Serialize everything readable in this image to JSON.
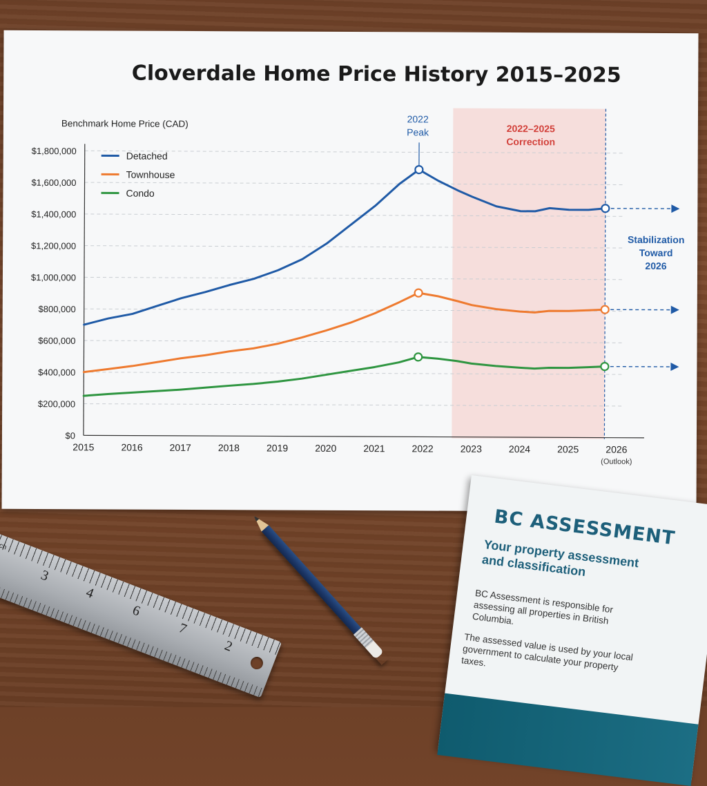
{
  "chart_data": {
    "type": "line",
    "title": "Cloverdale Home Price History 2015–2025",
    "ylabel": "Benchmark Home Price (CAD)",
    "xlabel": "",
    "x_ticks": [
      "2015",
      "2016",
      "2017",
      "2018",
      "2019",
      "2020",
      "2021",
      "2022",
      "2023",
      "2024",
      "2025",
      "2026"
    ],
    "x_tick_note": "(Outlook)",
    "xlim": [
      2015,
      2026
    ],
    "y_ticks": [
      "$0",
      "$200,000",
      "$400,000",
      "$600,000",
      "$800,000",
      "$1,000,000",
      "$1,200,000",
      "$1,400,000",
      "$1,600,000",
      "$1,800,000"
    ],
    "ylim": [
      0,
      1800000
    ],
    "grid": "horizontal dashed",
    "legend_position": "top-left",
    "series": [
      {
        "name": "Detached",
        "color": "#1f5aa6",
        "x": [
          2015.0,
          2015.5,
          2016.0,
          2016.5,
          2017.0,
          2017.5,
          2018.0,
          2018.5,
          2019.0,
          2019.5,
          2020.0,
          2020.5,
          2021.0,
          2021.5,
          2021.9,
          2022.3,
          2022.7,
          2023.0,
          2023.5,
          2024.0,
          2024.3,
          2024.6,
          2025.0,
          2025.4,
          2025.75
        ],
        "y": [
          700000,
          740000,
          770000,
          820000,
          870000,
          910000,
          955000,
          995000,
          1050000,
          1120000,
          1220000,
          1340000,
          1460000,
          1600000,
          1690000,
          1620000,
          1560000,
          1520000,
          1460000,
          1430000,
          1430000,
          1450000,
          1440000,
          1440000,
          1450000
        ]
      },
      {
        "name": "Townhouse",
        "color": "#ee7a2f",
        "x": [
          2015.0,
          2015.5,
          2016.0,
          2016.5,
          2017.0,
          2017.5,
          2018.0,
          2018.5,
          2019.0,
          2019.5,
          2020.0,
          2020.5,
          2021.0,
          2021.5,
          2021.9,
          2022.3,
          2022.7,
          2023.0,
          2023.5,
          2024.0,
          2024.3,
          2024.6,
          2025.0,
          2025.4,
          2025.75
        ],
        "y": [
          400000,
          420000,
          440000,
          465000,
          490000,
          510000,
          535000,
          555000,
          585000,
          625000,
          670000,
          720000,
          780000,
          850000,
          910000,
          890000,
          860000,
          835000,
          810000,
          795000,
          790000,
          800000,
          800000,
          805000,
          810000
        ]
      },
      {
        "name": "Condo",
        "color": "#2e9540",
        "x": [
          2015.0,
          2015.5,
          2016.0,
          2016.5,
          2017.0,
          2017.5,
          2018.0,
          2018.5,
          2019.0,
          2019.5,
          2020.0,
          2020.5,
          2021.0,
          2021.5,
          2021.9,
          2022.3,
          2022.7,
          2023.0,
          2023.5,
          2024.0,
          2024.3,
          2024.6,
          2025.0,
          2025.4,
          2025.75
        ],
        "y": [
          250000,
          262000,
          272000,
          282000,
          292000,
          305000,
          318000,
          330000,
          345000,
          365000,
          390000,
          415000,
          440000,
          470000,
          505000,
          495000,
          480000,
          465000,
          450000,
          440000,
          435000,
          440000,
          440000,
          445000,
          450000
        ]
      }
    ],
    "peak_markers": {
      "x": 2021.9,
      "values": [
        1690000,
        910000,
        505000
      ]
    },
    "end_markers": {
      "x": 2025.75,
      "values": [
        1450000,
        810000,
        450000
      ]
    },
    "annotations": [
      {
        "kind": "label",
        "text": "2022\nPeak",
        "x": 2021.9
      },
      {
        "kind": "shaded_region",
        "text": "2022–2025\nCorrection",
        "x_start": 2022.6,
        "x_end": 2025.75,
        "color": "#f5d5d2"
      },
      {
        "kind": "label",
        "text": "Stabilization\nToward\n2026"
      }
    ]
  },
  "ruler": {
    "unit_label": "inch",
    "numbers": [
      "3",
      "4",
      "6",
      "7",
      "2"
    ]
  },
  "booklet": {
    "title": "BC ASSESSMENT",
    "subtitle": "Your property assessment and classification",
    "paragraph_1": "BC Assessment is responsible for assessing all properties in British Columbia.",
    "paragraph_2": "The assessed value is used by your local government to calculate your property taxes."
  },
  "colors": {
    "paper": "#f7f8f9",
    "wood": "#7c4a2d",
    "booklet_accent": "#1d5f7a"
  }
}
